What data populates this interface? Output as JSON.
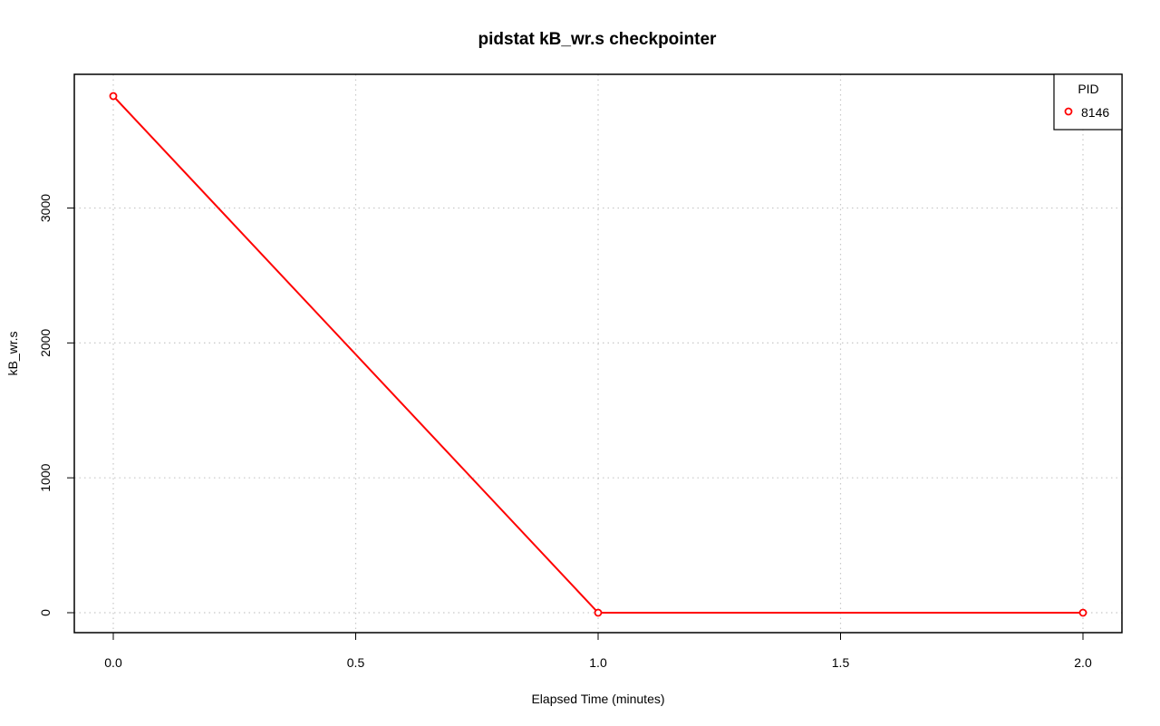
{
  "chart_data": {
    "type": "line",
    "title": "pidstat kB_wr.s checkpointer",
    "xlabel": "Elapsed Time (minutes)",
    "ylabel": "kB_wr.s",
    "xlim": [
      0.0,
      2.0
    ],
    "ylim": [
      0,
      3830
    ],
    "x_ticks": [
      0.0,
      0.5,
      1.0,
      1.5,
      2.0
    ],
    "x_tick_labels": [
      "0.0",
      "0.5",
      "1.0",
      "1.5",
      "2.0"
    ],
    "y_ticks": [
      0,
      1000,
      2000,
      3000
    ],
    "y_tick_labels": [
      "0",
      "1000",
      "2000",
      "3000"
    ],
    "grid": true,
    "legend": {
      "title": "PID",
      "position": "top-right"
    },
    "series": [
      {
        "name": "8146",
        "color": "#ff0000",
        "x": [
          0.0,
          1.0,
          2.0
        ],
        "y": [
          3830,
          0,
          0
        ]
      }
    ]
  }
}
